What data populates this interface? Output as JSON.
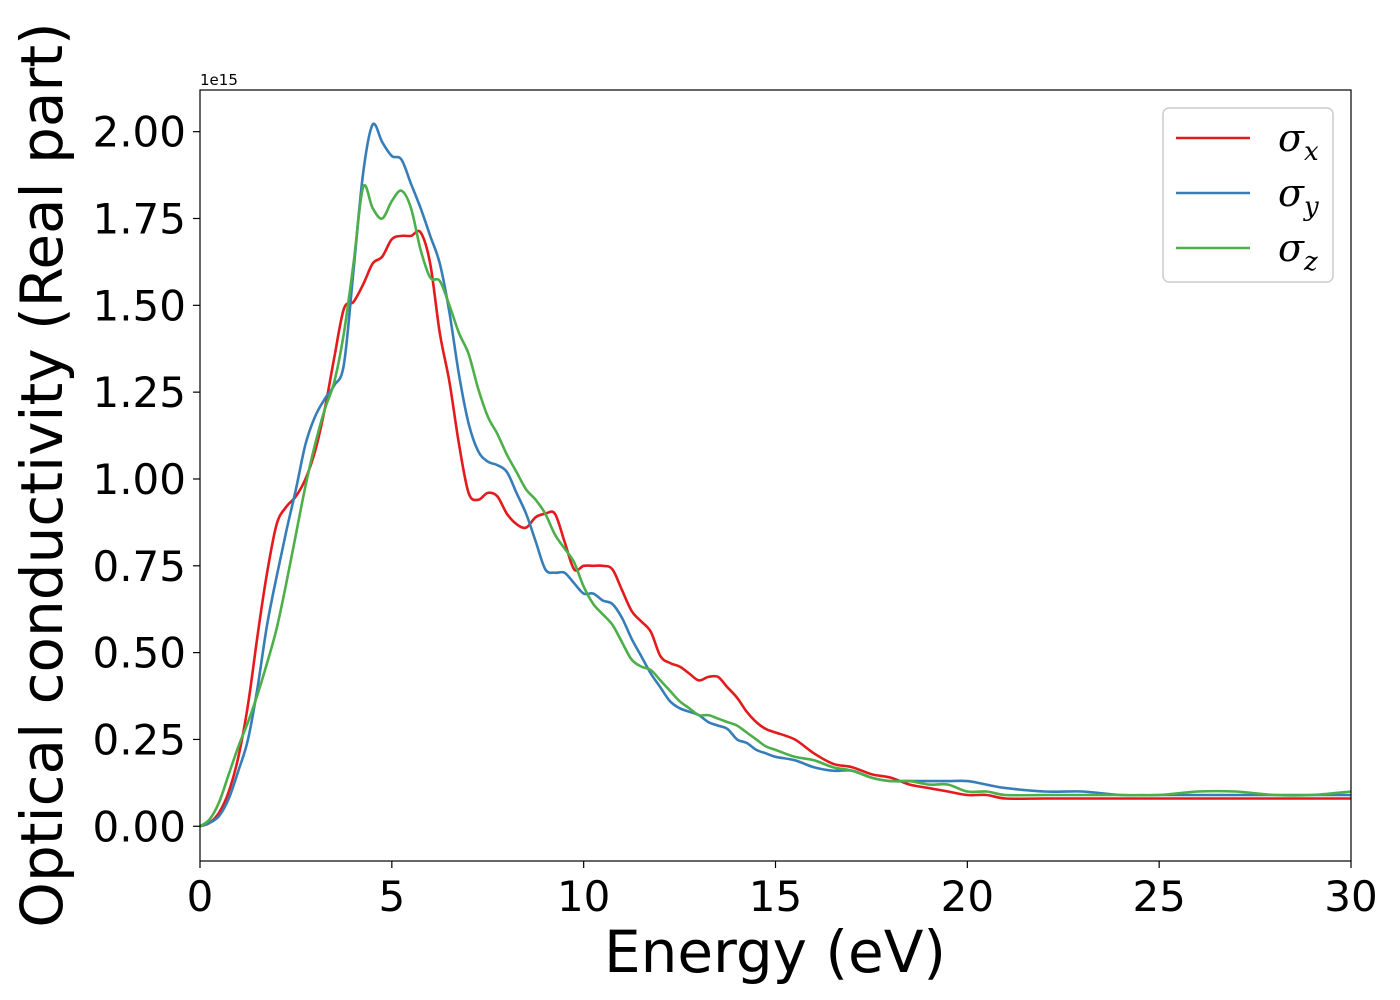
{
  "chart_data": {
    "type": "line",
    "xlabel": "Energy (eV)",
    "ylabel": "Optical conductivity (Real part)",
    "y_offset_label": "1e15",
    "xlim": [
      0,
      30
    ],
    "ylim": [
      -0.1,
      2.12
    ],
    "xticks": [
      0,
      5,
      10,
      15,
      20,
      25,
      30
    ],
    "xtick_labels": [
      "0",
      "5",
      "10",
      "15",
      "20",
      "25",
      "30"
    ],
    "yticks": [
      0.0,
      0.25,
      0.5,
      0.75,
      1.0,
      1.25,
      1.5,
      1.75,
      2.0
    ],
    "ytick_labels": [
      "0.00",
      "0.25",
      "0.50",
      "0.75",
      "1.00",
      "1.25",
      "1.50",
      "1.75",
      "2.00"
    ],
    "grid": false,
    "legend_position": "top-right",
    "series": [
      {
        "name": "σx",
        "base": "σ",
        "sub": "x",
        "color": "#e41a1c",
        "x": [
          0,
          0.25,
          0.5,
          0.75,
          1.0,
          1.25,
          1.5,
          1.75,
          2.0,
          2.25,
          2.5,
          2.75,
          3.0,
          3.25,
          3.5,
          3.75,
          4.0,
          4.25,
          4.5,
          4.75,
          5.0,
          5.25,
          5.5,
          5.75,
          6.0,
          6.25,
          6.5,
          6.75,
          7.0,
          7.25,
          7.5,
          7.75,
          8.0,
          8.25,
          8.5,
          8.75,
          9.0,
          9.25,
          9.5,
          9.75,
          10.0,
          10.25,
          10.5,
          10.75,
          11.0,
          11.25,
          11.5,
          11.75,
          12.0,
          12.25,
          12.5,
          12.75,
          13.0,
          13.25,
          13.5,
          13.75,
          14.0,
          14.25,
          14.5,
          14.75,
          15.0,
          15.5,
          16.0,
          16.5,
          17.0,
          17.5,
          18.0,
          18.5,
          19.0,
          19.5,
          20.0,
          20.5,
          21.0,
          22.0,
          23.0,
          24.0,
          25.0,
          26.0,
          27.0,
          28.0,
          29.0,
          30.0
        ],
        "y": [
          0.0,
          0.01,
          0.04,
          0.1,
          0.2,
          0.35,
          0.55,
          0.73,
          0.87,
          0.92,
          0.95,
          1.0,
          1.08,
          1.2,
          1.35,
          1.49,
          1.51,
          1.56,
          1.62,
          1.64,
          1.69,
          1.7,
          1.7,
          1.71,
          1.62,
          1.42,
          1.28,
          1.1,
          0.96,
          0.94,
          0.96,
          0.95,
          0.9,
          0.87,
          0.86,
          0.89,
          0.9,
          0.9,
          0.82,
          0.74,
          0.75,
          0.75,
          0.75,
          0.74,
          0.68,
          0.62,
          0.59,
          0.56,
          0.49,
          0.47,
          0.46,
          0.44,
          0.42,
          0.43,
          0.43,
          0.4,
          0.37,
          0.33,
          0.3,
          0.28,
          0.27,
          0.25,
          0.21,
          0.18,
          0.17,
          0.15,
          0.14,
          0.12,
          0.11,
          0.1,
          0.09,
          0.09,
          0.08,
          0.08,
          0.08,
          0.08,
          0.08,
          0.08,
          0.08,
          0.08,
          0.08,
          0.08
        ]
      },
      {
        "name": "σy",
        "base": "σ",
        "sub": "y",
        "color": "#377eb8",
        "x": [
          0,
          0.25,
          0.5,
          0.75,
          1.0,
          1.25,
          1.5,
          1.75,
          2.0,
          2.25,
          2.5,
          2.75,
          3.0,
          3.25,
          3.5,
          3.75,
          4.0,
          4.25,
          4.5,
          4.75,
          5.0,
          5.25,
          5.5,
          5.75,
          6.0,
          6.25,
          6.5,
          6.75,
          7.0,
          7.25,
          7.5,
          7.75,
          8.0,
          8.25,
          8.5,
          8.75,
          9.0,
          9.25,
          9.5,
          9.75,
          10.0,
          10.25,
          10.5,
          10.75,
          11.0,
          11.25,
          11.5,
          11.75,
          12.0,
          12.25,
          12.5,
          12.75,
          13.0,
          13.25,
          13.5,
          13.75,
          14.0,
          14.25,
          14.5,
          14.75,
          15.0,
          15.5,
          16.0,
          16.5,
          17.0,
          17.5,
          18.0,
          18.5,
          19.0,
          19.5,
          20.0,
          20.5,
          21.0,
          22.0,
          23.0,
          24.0,
          25.0,
          26.0,
          27.0,
          28.0,
          29.0,
          30.0
        ],
        "y": [
          0.0,
          0.01,
          0.03,
          0.08,
          0.16,
          0.25,
          0.4,
          0.58,
          0.72,
          0.85,
          0.97,
          1.1,
          1.18,
          1.23,
          1.27,
          1.33,
          1.6,
          1.88,
          2.02,
          1.97,
          1.93,
          1.92,
          1.85,
          1.78,
          1.7,
          1.62,
          1.48,
          1.3,
          1.16,
          1.08,
          1.05,
          1.04,
          1.02,
          0.96,
          0.9,
          0.82,
          0.74,
          0.73,
          0.73,
          0.7,
          0.67,
          0.67,
          0.65,
          0.64,
          0.6,
          0.54,
          0.49,
          0.44,
          0.4,
          0.36,
          0.34,
          0.33,
          0.32,
          0.3,
          0.29,
          0.28,
          0.25,
          0.24,
          0.22,
          0.21,
          0.2,
          0.19,
          0.17,
          0.16,
          0.16,
          0.14,
          0.13,
          0.13,
          0.13,
          0.13,
          0.13,
          0.12,
          0.11,
          0.1,
          0.1,
          0.09,
          0.09,
          0.09,
          0.09,
          0.09,
          0.09,
          0.09
        ]
      },
      {
        "name": "σz",
        "base": "σ",
        "sub": "z",
        "color": "#4daf4a",
        "x": [
          0,
          0.25,
          0.5,
          0.75,
          1.0,
          1.25,
          1.5,
          1.75,
          2.0,
          2.25,
          2.5,
          2.75,
          3.0,
          3.25,
          3.5,
          3.75,
          4.0,
          4.25,
          4.5,
          4.75,
          5.0,
          5.25,
          5.5,
          5.75,
          6.0,
          6.25,
          6.5,
          6.75,
          7.0,
          7.25,
          7.5,
          7.75,
          8.0,
          8.25,
          8.5,
          8.75,
          9.0,
          9.25,
          9.5,
          9.75,
          10.0,
          10.25,
          10.5,
          10.75,
          11.0,
          11.25,
          11.5,
          11.75,
          12.0,
          12.25,
          12.5,
          12.75,
          13.0,
          13.25,
          13.5,
          13.75,
          14.0,
          14.25,
          14.5,
          14.75,
          15.0,
          15.5,
          16.0,
          16.5,
          17.0,
          17.5,
          18.0,
          18.5,
          19.0,
          19.5,
          20.0,
          20.5,
          21.0,
          22.0,
          23.0,
          24.0,
          25.0,
          26.0,
          27.0,
          28.0,
          29.0,
          30.0
        ],
        "y": [
          0.0,
          0.02,
          0.07,
          0.15,
          0.23,
          0.3,
          0.38,
          0.47,
          0.57,
          0.7,
          0.84,
          0.98,
          1.1,
          1.2,
          1.28,
          1.42,
          1.62,
          1.84,
          1.78,
          1.75,
          1.8,
          1.83,
          1.78,
          1.66,
          1.58,
          1.57,
          1.5,
          1.42,
          1.36,
          1.26,
          1.18,
          1.13,
          1.07,
          1.02,
          0.97,
          0.94,
          0.9,
          0.84,
          0.8,
          0.76,
          0.69,
          0.64,
          0.61,
          0.58,
          0.53,
          0.48,
          0.46,
          0.45,
          0.42,
          0.39,
          0.36,
          0.34,
          0.32,
          0.32,
          0.31,
          0.3,
          0.29,
          0.27,
          0.25,
          0.23,
          0.22,
          0.2,
          0.19,
          0.17,
          0.16,
          0.14,
          0.13,
          0.13,
          0.12,
          0.12,
          0.1,
          0.1,
          0.09,
          0.09,
          0.09,
          0.09,
          0.09,
          0.1,
          0.1,
          0.09,
          0.09,
          0.1
        ]
      }
    ]
  }
}
